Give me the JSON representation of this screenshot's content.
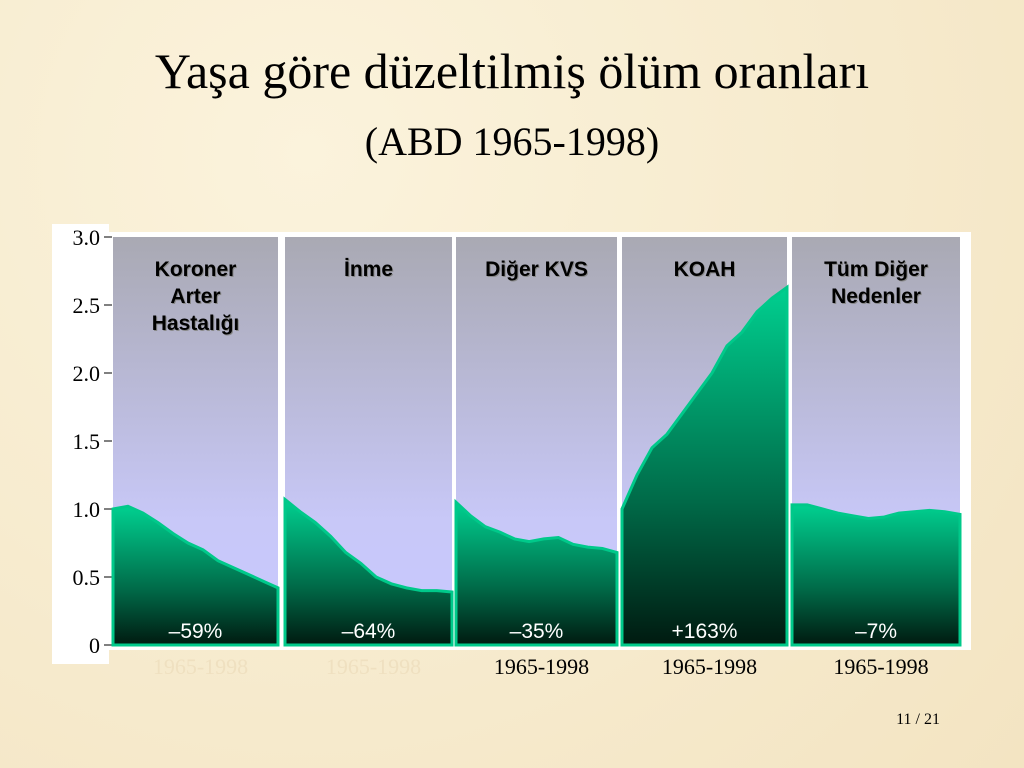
{
  "chart_data": {
    "type": "area",
    "title": "Yaşa göre düzeltilmiş ölüm oranları",
    "subtitle": "(ABD 1965-1998)",
    "ylim": [
      0,
      3
    ],
    "yticks": [
      0,
      0.5,
      {
        "value": 1,
        "label": "1.0"
      },
      1.5,
      {
        "value": 2,
        "label": "2.0"
      },
      2.5,
      {
        "value": 3,
        "label": "3.0"
      }
    ],
    "x": [
      1965,
      1968,
      1971,
      1974,
      1977,
      1980,
      1983,
      1986,
      1989,
      1992,
      1995,
      1998
    ],
    "series": [
      {
        "name": "Koroner\nArter\nHastalığı",
        "change_label": "–59%",
        "period": "1965-1998",
        "color": "#00c98a",
        "values": [
          1.0,
          1.02,
          0.97,
          0.9,
          0.82,
          0.75,
          0.7,
          0.62,
          0.57,
          0.52,
          0.47,
          0.42
        ]
      },
      {
        "name": "İnme",
        "change_label": "–64%",
        "period": "1965-1998",
        "color": "#00c98a",
        "values": [
          1.07,
          0.98,
          0.9,
          0.8,
          0.68,
          0.6,
          0.5,
          0.45,
          0.42,
          0.4,
          0.4,
          0.39
        ]
      },
      {
        "name": "Diğer KVS",
        "change_label": "–35%",
        "period": "1965-1998",
        "color": "#00c98a",
        "values": [
          1.05,
          0.95,
          0.87,
          0.83,
          0.78,
          0.76,
          0.78,
          0.79,
          0.74,
          0.72,
          0.71,
          0.68
        ]
      },
      {
        "name": "KOAH",
        "change_label": "+163%",
        "period": "1965-1998",
        "color": "#00c98a",
        "values": [
          1.0,
          1.25,
          1.45,
          1.55,
          1.7,
          1.85,
          2.0,
          2.2,
          2.3,
          2.45,
          2.55,
          2.63
        ]
      },
      {
        "name": "Tüm Diğer\nNedenler",
        "change_label": "–7%",
        "period": "1965-1998",
        "color": "#00c98a",
        "values": [
          1.03,
          1.03,
          1.0,
          0.97,
          0.95,
          0.93,
          0.94,
          0.97,
          0.98,
          0.99,
          0.98,
          0.96
        ]
      }
    ],
    "page_number": "11  / 21"
  }
}
